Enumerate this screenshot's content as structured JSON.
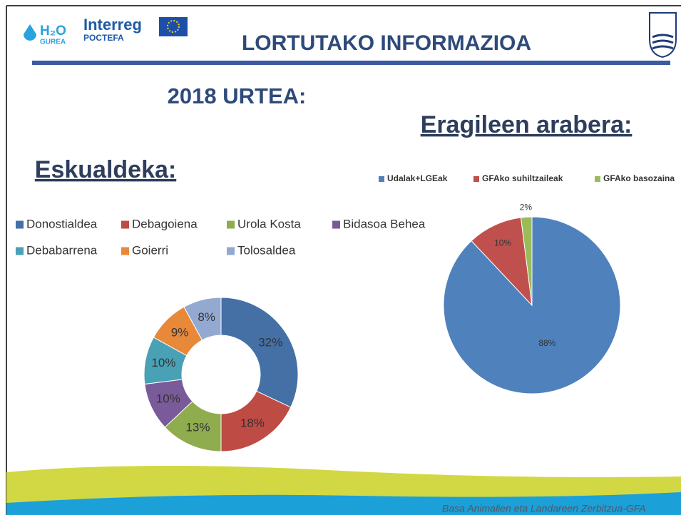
{
  "header": {
    "logo_left": "H₂O",
    "logo_left_sub": "GUREA",
    "logo_mid": "Interreg",
    "logo_mid_sub": "POCTEFA",
    "title": "LORTUTAKO INFORMAZIOA"
  },
  "subtitle": "2018 URTEA:",
  "footer": "Basa Animalien eta Landareen Zerbitzua-GFA",
  "chart_data": [
    {
      "type": "donut",
      "title": "Eskualdeka:",
      "categories": [
        "Donostialdea",
        "Debagoiena",
        "Urola Kosta",
        "Bidasoa Behea",
        "Debabarrena",
        "Goierri",
        "Tolosaldea"
      ],
      "values": [
        32,
        18,
        13,
        10,
        10,
        9,
        8
      ],
      "value_labels": [
        "32%",
        "18%",
        "13%",
        "10%",
        "10%",
        "9%",
        "8%"
      ],
      "colors": [
        "#4470a6",
        "#bf4b45",
        "#8fac4e",
        "#7a5b9a",
        "#48a1b5",
        "#e8893a",
        "#93a9d1"
      ]
    },
    {
      "type": "pie",
      "title": "Eragileen arabera:",
      "categories": [
        "Udalak+LGEak",
        "GFAko suhiltzaileak",
        "GFAko basozaina"
      ],
      "values": [
        88,
        10,
        2
      ],
      "value_labels": [
        "88%",
        "10%",
        "2%"
      ],
      "colors": [
        "#4f81bd",
        "#c0504d",
        "#9bbb59"
      ]
    }
  ]
}
